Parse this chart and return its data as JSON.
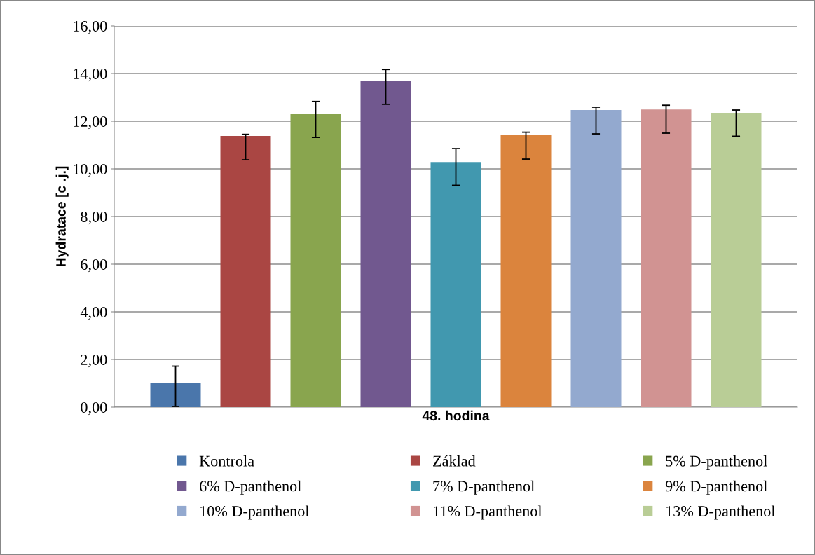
{
  "chart_data": {
    "type": "bar",
    "ylabel": "Hydratace [c .j.]",
    "categories": [
      "48. hodina"
    ],
    "series": [
      {
        "name": "Kontrola",
        "color": "#4a76ab",
        "values": [
          1.02
        ],
        "errors": [
          [
            0.03,
            1.72
          ]
        ]
      },
      {
        "name": "Základ",
        "color": "#aa4643",
        "values": [
          11.38
        ],
        "errors": [
          [
            10.38,
            11.45
          ]
        ]
      },
      {
        "name": "5% D-panthenol",
        "color": "#89a54e",
        "values": [
          12.32
        ],
        "errors": [
          [
            11.32,
            12.83
          ]
        ]
      },
      {
        "name": "6% D-panthenol",
        "color": "#71588f",
        "values": [
          13.7
        ],
        "errors": [
          [
            12.71,
            14.17
          ]
        ]
      },
      {
        "name": "7% D-panthenol",
        "color": "#4198af",
        "values": [
          10.29
        ],
        "errors": [
          [
            9.31,
            10.85
          ]
        ]
      },
      {
        "name": "9% D-panthenol",
        "color": "#db843d",
        "values": [
          11.41
        ],
        "errors": [
          [
            10.41,
            11.54
          ]
        ]
      },
      {
        "name": "10% D-panthenol",
        "color": "#93a9cf",
        "values": [
          12.47
        ],
        "errors": [
          [
            11.47,
            12.59
          ]
        ]
      },
      {
        "name": "11% D-panthenol",
        "color": "#d19392",
        "values": [
          12.49
        ],
        "errors": [
          [
            11.5,
            12.67
          ]
        ]
      },
      {
        "name": "13% D-panthenol",
        "color": "#b9cd96",
        "values": [
          12.35
        ],
        "errors": [
          [
            11.37,
            12.47
          ]
        ]
      }
    ],
    "ylim": [
      0,
      16
    ],
    "yticks": [
      {
        "value": 0,
        "label": "0,00"
      },
      {
        "value": 2,
        "label": "2,00"
      },
      {
        "value": 4,
        "label": "4,00"
      },
      {
        "value": 6,
        "label": "6,00"
      },
      {
        "value": 8,
        "label": "8,00"
      },
      {
        "value": 10,
        "label": "10,00"
      },
      {
        "value": 12,
        "label": "12,00"
      },
      {
        "value": 14,
        "label": "14,00"
      },
      {
        "value": 16,
        "label": "16,00"
      }
    ],
    "grid": "y",
    "legend": "bottom"
  }
}
